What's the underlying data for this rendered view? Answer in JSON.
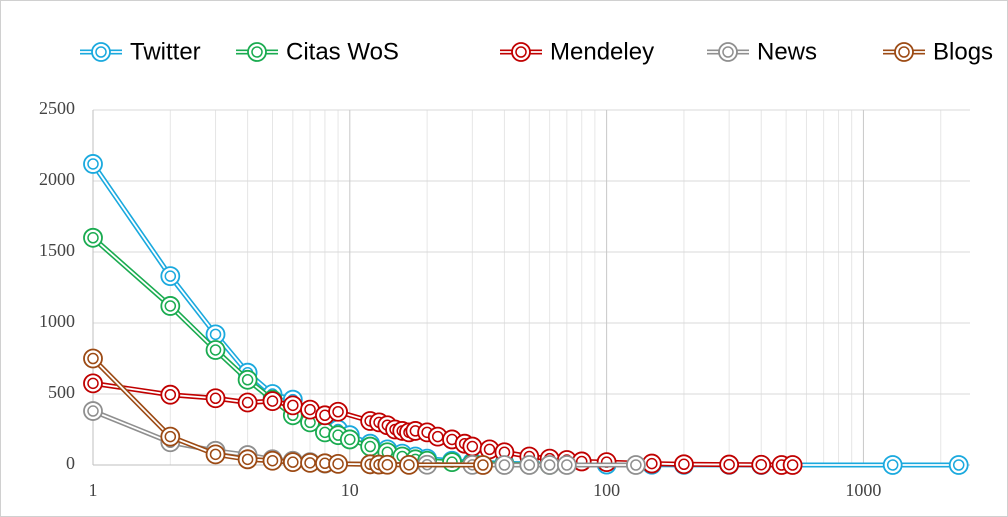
{
  "chart_data": {
    "type": "line",
    "xscale": "log",
    "grid": true,
    "legend": "top",
    "xlim": [
      1,
      2600
    ],
    "xticks": [
      1,
      10,
      100,
      1000
    ],
    "xminor_grid": [
      2,
      3,
      4,
      5,
      6,
      7,
      8,
      9,
      20,
      30,
      40,
      50,
      60,
      70,
      80,
      90,
      200,
      300,
      400,
      500,
      600,
      700,
      800,
      900,
      2000
    ],
    "ylim": [
      0,
      2500
    ],
    "yticks": [
      0,
      500,
      1000,
      1500,
      2000,
      2500
    ],
    "series": [
      {
        "name": "Twitter",
        "color": "#1aa9de",
        "x": [
          1,
          2,
          3,
          4,
          5,
          6,
          7,
          8,
          9,
          10,
          12,
          14,
          16,
          18,
          20,
          25,
          30,
          40,
          50,
          70,
          100,
          150,
          200,
          300,
          400,
          1300,
          2350
        ],
        "values": [
          2120,
          1330,
          920,
          650,
          500,
          460,
          350,
          300,
          250,
          210,
          150,
          110,
          80,
          60,
          45,
          30,
          20,
          12,
          8,
          5,
          3,
          2,
          1,
          1,
          0,
          0,
          0
        ]
      },
      {
        "name": "Citas WoS",
        "color": "#1aab50",
        "x": [
          1,
          2,
          3,
          4,
          5,
          6,
          7,
          8,
          9,
          10,
          12,
          14,
          16,
          18,
          20,
          25,
          30,
          40,
          50,
          60
        ],
        "values": [
          1600,
          1120,
          810,
          600,
          460,
          350,
          300,
          230,
          210,
          180,
          130,
          90,
          60,
          40,
          30,
          20,
          10,
          5,
          3,
          1
        ]
      },
      {
        "name": "Mendeley",
        "color": "#c00000",
        "x": [
          1,
          2,
          3,
          4,
          5,
          6,
          7,
          8,
          9,
          12,
          13,
          14,
          15,
          16,
          17,
          18,
          20,
          22,
          25,
          28,
          30,
          35,
          40,
          50,
          60,
          70,
          80,
          100,
          150,
          200,
          300,
          400,
          480,
          530
        ],
        "values": [
          575,
          495,
          470,
          440,
          450,
          420,
          390,
          350,
          375,
          310,
          300,
          280,
          250,
          240,
          230,
          240,
          230,
          200,
          180,
          150,
          130,
          110,
          90,
          60,
          45,
          35,
          25,
          20,
          10,
          5,
          3,
          2,
          0,
          0
        ]
      },
      {
        "name": "News",
        "color": "#8f8f8f",
        "x": [
          1,
          2,
          3,
          4,
          5,
          6,
          7,
          8,
          12,
          20,
          30,
          40,
          50,
          60,
          70,
          130
        ],
        "values": [
          380,
          160,
          100,
          70,
          40,
          30,
          20,
          10,
          5,
          2,
          1,
          0,
          0,
          0,
          0,
          0
        ]
      },
      {
        "name": "Blogs",
        "color": "#9c4a14",
        "x": [
          1,
          2,
          3,
          4,
          5,
          6,
          7,
          8,
          9,
          12,
          13,
          14,
          17,
          33
        ],
        "values": [
          750,
          200,
          75,
          40,
          30,
          20,
          15,
          12,
          8,
          5,
          3,
          2,
          1,
          0
        ]
      }
    ]
  }
}
